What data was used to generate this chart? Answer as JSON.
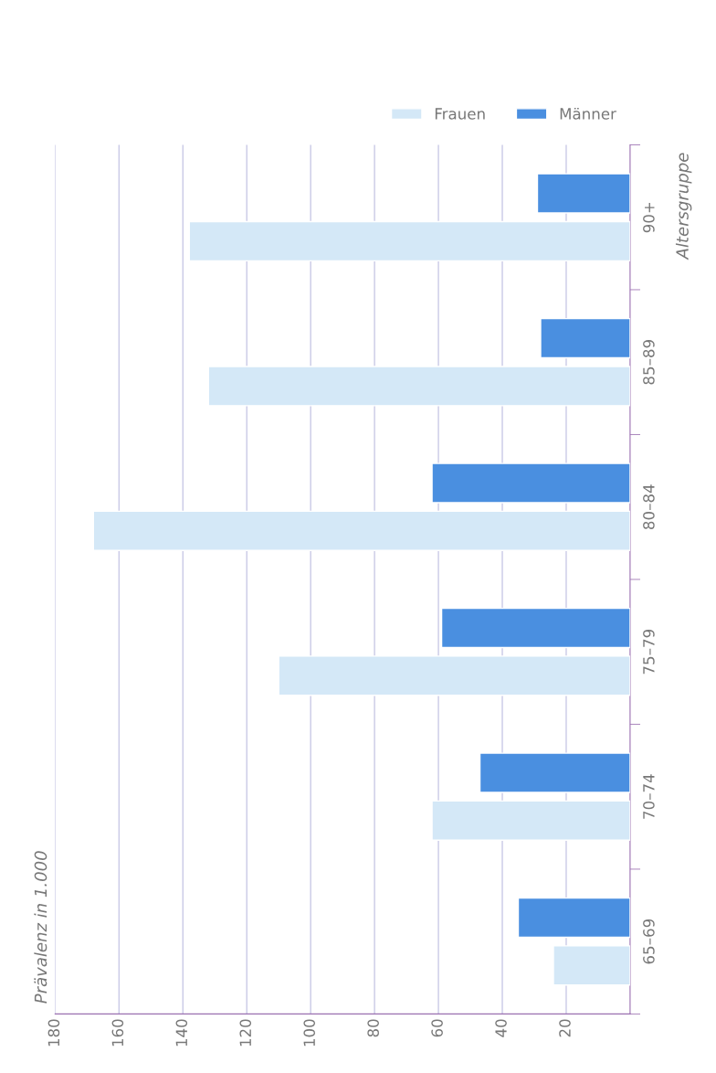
{
  "chart_data": {
    "type": "bar",
    "orientation": "horizontal",
    "ylabel": "Prävalenz in 1.000",
    "y2label": "Altersgruppe",
    "categories": [
      "90+",
      "85–89",
      "80–84",
      "75–79",
      "70–74",
      "65–69"
    ],
    "series": [
      {
        "name": "Frauen",
        "color": "#d4e8f7",
        "values": [
          138,
          132,
          168,
          110,
          62,
          24
        ]
      },
      {
        "name": "Männer",
        "color": "#4a8fe0",
        "values": [
          29,
          28,
          62,
          59,
          47,
          35
        ]
      }
    ],
    "xlim": [
      180,
      0
    ],
    "xticks": [
      180,
      160,
      140,
      120,
      100,
      80,
      60,
      40,
      20
    ],
    "grid": "x",
    "legend": "top right"
  }
}
